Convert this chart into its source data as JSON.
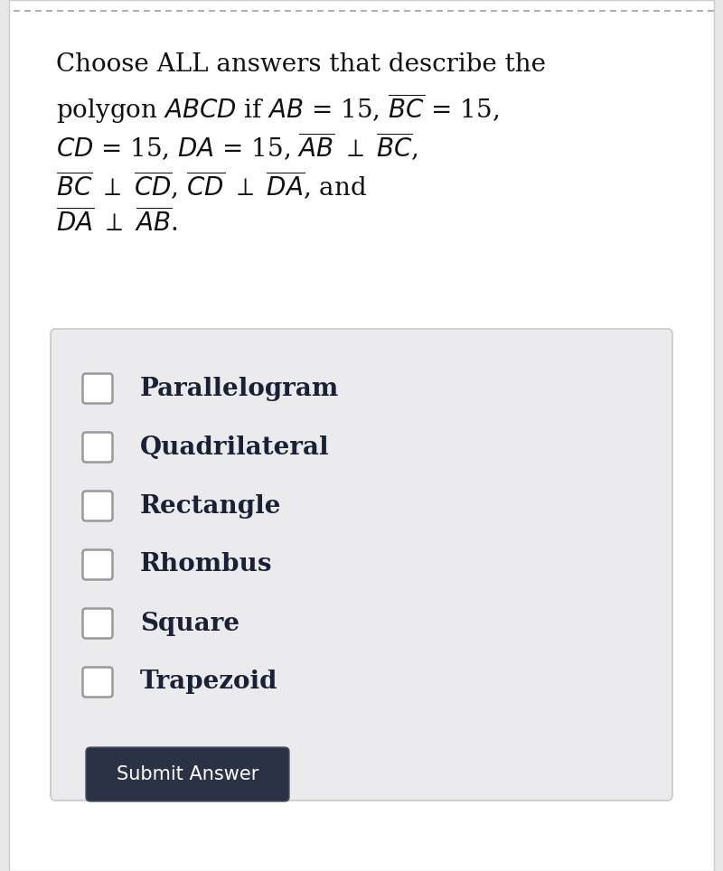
{
  "bg_color": "#e8e8ea",
  "page_bg": "#ffffff",
  "choices": [
    "Parallelogram",
    "Quadrilateral",
    "Rectangle",
    "Rhombus",
    "Square",
    "Trapezoid"
  ],
  "box_bg": "#ebebed",
  "box_border": "#c8c8cc",
  "button_bg": "#2b3245",
  "button_text": "Submit Answer",
  "button_text_color": "#ffffff",
  "checkbox_fill": "#ffffff",
  "checkbox_border": "#999999",
  "choice_text_color": "#1a2035",
  "dashed_line_color": "#aaaaaa",
  "question_text_color": "#111111",
  "font_size_question": 20,
  "font_size_choices": 20,
  "font_size_button": 15,
  "line1": "Choose ALL answers that describe the",
  "line2a_plain": "polygon ",
  "line2b_italic": "ABCD",
  "line2c_plain": " if ",
  "line2d_italic": "AB",
  "line2e_plain": " = 15, ",
  "line2f_over": "BC",
  "line2g_plain": " = 15,",
  "line3a_over": "CD",
  "line3b_plain": " = 15, ",
  "line3c_over": "DA",
  "line3d_plain": " = 15, ",
  "line3e_over": "AB",
  "line3f_plain": " ⊥ ",
  "line3g_over": "BC",
  "line3h_plain": ",",
  "line4a_over": "BC",
  "line4b_plain": " ⊥ ",
  "line4c_over": "CD",
  "line4d_plain": ", ",
  "line4e_over": "CD",
  "line4f_plain": " ⊥ ",
  "line4g_over": "DA",
  "line4h_plain": ", and",
  "line5a_over": "DA",
  "line5b_plain": " ⊥ ",
  "line5c_over": "AB",
  "line5d_plain": "."
}
